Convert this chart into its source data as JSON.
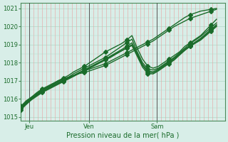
{
  "title": "Pression niveau de la mer( hPa )",
  "ylabel_vals": [
    1015,
    1016,
    1017,
    1018,
    1019,
    1020,
    1021
  ],
  "ylim": [
    1014.8,
    1021.3
  ],
  "xlim": [
    0,
    48
  ],
  "xtick_positions": [
    2,
    16,
    32
  ],
  "xtick_labels": [
    "Jeu",
    "Ven",
    "Sam"
  ],
  "vline_positions": [
    2,
    16,
    32
  ],
  "bg_color": "#d8eee8",
  "grid_color_h": "#b0d8c8",
  "grid_color_v": "#e8a0a0",
  "line_color": "#1a6b2a",
  "marker": "D",
  "markersize": 3,
  "linewidth": 1.0,
  "series": [
    [
      1015.6,
      1015.9,
      1016.1,
      1016.35,
      1016.55,
      1016.7,
      1016.85,
      1017.0,
      1017.1,
      1017.2,
      1017.3,
      1017.4,
      1017.45,
      1017.55,
      1017.65,
      1017.75,
      1017.85,
      1018.0,
      1018.15,
      1018.3,
      1018.45,
      1018.6,
      1018.75,
      1018.9,
      1019.05,
      1019.2,
      1019.4,
      1019.6,
      1019.8,
      1020.0,
      1020.15,
      1020.3,
      1020.45,
      1020.55,
      1020.65,
      1020.75,
      1020.85,
      1020.95
    ],
    [
      1015.4,
      1015.7,
      1016.0,
      1016.25,
      1016.5,
      1016.65,
      1016.8,
      1016.95,
      1017.1,
      1017.2,
      1017.3,
      1017.45,
      1017.55,
      1017.65,
      1017.75,
      1017.85,
      1017.95,
      1018.1,
      1018.25,
      1018.4,
      1018.55,
      1018.7,
      1018.85,
      1019.0,
      1019.15,
      1019.3,
      1019.5,
      1019.7,
      1019.9,
      1020.1,
      1020.3,
      1020.5,
      1020.65,
      1020.75,
      1020.85,
      1020.9,
      1020.95,
      1021.0
    ],
    [
      1015.55,
      1015.85,
      1016.1,
      1016.3,
      1016.5,
      1016.65,
      1016.8,
      1017.0,
      1017.15,
      1017.3,
      1017.5,
      1017.65,
      1017.8,
      1018.0,
      1018.2,
      1018.4,
      1018.6,
      1018.75,
      1018.9,
      1019.05,
      1019.25,
      1019.5,
      1018.8,
      1018.2,
      1017.8,
      1017.7,
      1017.8,
      1018.0,
      1018.2,
      1018.4,
      1018.6,
      1018.9,
      1019.1,
      1019.3,
      1019.5,
      1019.8,
      1020.1,
      1020.4
    ],
    [
      1015.5,
      1015.8,
      1016.05,
      1016.25,
      1016.45,
      1016.6,
      1016.75,
      1016.9,
      1017.05,
      1017.2,
      1017.4,
      1017.55,
      1017.7,
      1017.85,
      1018.0,
      1018.15,
      1018.3,
      1018.5,
      1018.7,
      1018.9,
      1019.1,
      1019.3,
      1018.6,
      1018.0,
      1017.65,
      1017.6,
      1017.7,
      1017.9,
      1018.1,
      1018.3,
      1018.55,
      1018.8,
      1019.05,
      1019.25,
      1019.45,
      1019.7,
      1019.95,
      1020.2
    ],
    [
      1015.5,
      1015.75,
      1016.0,
      1016.2,
      1016.4,
      1016.55,
      1016.7,
      1016.85,
      1017.0,
      1017.15,
      1017.3,
      1017.45,
      1017.6,
      1017.75,
      1017.9,
      1018.05,
      1018.2,
      1018.38,
      1018.55,
      1018.72,
      1018.9,
      1019.1,
      1018.5,
      1017.9,
      1017.55,
      1017.5,
      1017.65,
      1017.85,
      1018.05,
      1018.25,
      1018.5,
      1018.75,
      1018.95,
      1019.15,
      1019.35,
      1019.6,
      1019.85,
      1020.1
    ],
    [
      1015.45,
      1015.7,
      1015.95,
      1016.15,
      1016.35,
      1016.5,
      1016.65,
      1016.8,
      1016.95,
      1017.1,
      1017.25,
      1017.4,
      1017.55,
      1017.7,
      1017.85,
      1018.0,
      1018.15,
      1018.3,
      1018.48,
      1018.65,
      1018.82,
      1019.0,
      1018.42,
      1017.85,
      1017.48,
      1017.44,
      1017.6,
      1017.8,
      1018.0,
      1018.2,
      1018.45,
      1018.7,
      1018.92,
      1019.1,
      1019.3,
      1019.55,
      1019.8,
      1020.05
    ],
    [
      1015.5,
      1015.75,
      1016.0,
      1016.2,
      1016.4,
      1016.55,
      1016.7,
      1016.85,
      1017.0,
      1017.15,
      1017.3,
      1017.45,
      1017.6,
      1017.75,
      1017.9,
      1018.05,
      1018.2,
      1018.35,
      1018.5,
      1018.65,
      1018.8,
      1018.95,
      1018.35,
      1017.75,
      1017.4,
      1017.38,
      1017.55,
      1017.75,
      1017.95,
      1018.15,
      1018.42,
      1018.68,
      1018.9,
      1019.08,
      1019.25,
      1019.5,
      1019.75,
      1020.0
    ]
  ],
  "marker_every": 4
}
